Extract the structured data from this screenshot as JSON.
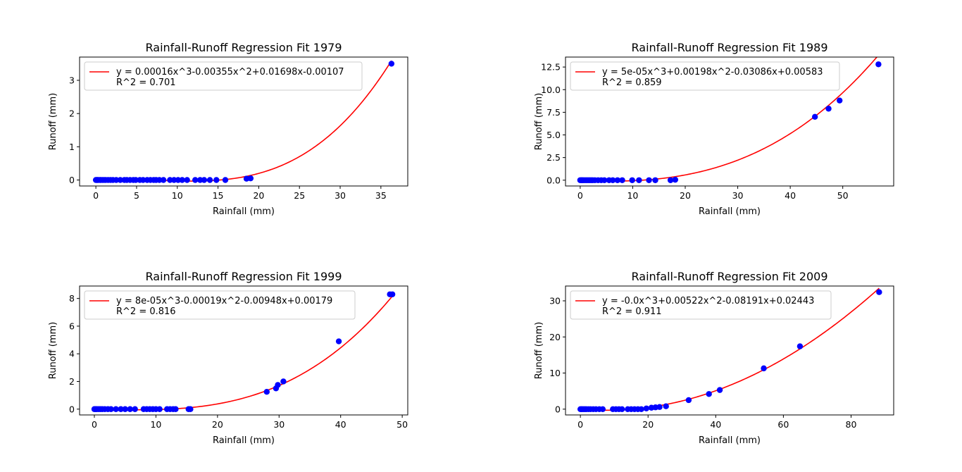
{
  "chart_data": [
    {
      "type": "scatter",
      "title": "Rainfall-Runoff Regression Fit 1979",
      "xlabel": "Rainfall (mm)",
      "ylabel": "Runoff (mm)",
      "xlim": [
        -2,
        38.3
      ],
      "ylim": [
        -0.18,
        3.7
      ],
      "xticks": [
        0,
        5,
        10,
        15,
        20,
        25,
        30,
        35
      ],
      "xtick_labels": [
        "0",
        "5",
        "10",
        "15",
        "20",
        "25",
        "30",
        "35"
      ],
      "yticks": [
        0,
        1,
        2,
        3
      ],
      "ytick_labels": [
        "0",
        "1",
        "2",
        "3"
      ],
      "grid": false,
      "legend_position": "top-left",
      "fit": {
        "label": "y = 0.00016x^3-0.00355x^2+0.01698x-0.00107",
        "r2_label": "R^2 = 0.701",
        "coefficients": [
          0.00016,
          -0.00355,
          0.01698,
          -0.00107
        ],
        "color": "#ff0000"
      },
      "points_color": "#0000ff",
      "points": {
        "x": [
          0,
          0.1,
          0.2,
          0.3,
          0.5,
          0.6,
          0.8,
          1,
          1.2,
          1.5,
          1.8,
          2.1,
          2.5,
          3,
          3.5,
          3.8,
          4.2,
          4.6,
          4.9,
          5.4,
          5.8,
          6.3,
          6.7,
          7.1,
          7.4,
          7.8,
          8.3,
          9.1,
          9.6,
          10.1,
          10.6,
          11.2,
          12.2,
          12.8,
          13.3,
          14,
          14.8,
          15.9,
          18.5,
          19
        ],
        "y": [
          0,
          0,
          0,
          0,
          0,
          0,
          0,
          0,
          0,
          0,
          0,
          0,
          0,
          0,
          0,
          0,
          0,
          0,
          0,
          0,
          0,
          0,
          0,
          0,
          0,
          0,
          0,
          0,
          0,
          0,
          0,
          0,
          0,
          0,
          0,
          0,
          0,
          0,
          0.04,
          0.05
        ]
      },
      "extra_point": {
        "x": 36.3,
        "y": 3.5
      }
    },
    {
      "type": "scatter",
      "title": "Rainfall-Runoff Regression Fit 1989",
      "xlabel": "Rainfall (mm)",
      "ylabel": "Runoff (mm)",
      "xlim": [
        -2.8,
        59.7
      ],
      "ylim": [
        -0.64,
        13.6
      ],
      "xticks": [
        0,
        10,
        20,
        30,
        40,
        50
      ],
      "xtick_labels": [
        "0",
        "10",
        "20",
        "30",
        "40",
        "50"
      ],
      "yticks": [
        0,
        2.5,
        5,
        7.5,
        10,
        12.5
      ],
      "ytick_labels": [
        "0.0",
        "2.5",
        "5.0",
        "7.5",
        "10.0",
        "12.5"
      ],
      "grid": false,
      "legend_position": "top-left",
      "fit": {
        "label": "y = 5e-05x^3+0.00198x^2-0.03086x+0.00583",
        "r2_label": "R^2 = 0.859",
        "coefficients": [
          5e-05,
          0.00198,
          -0.03086,
          0.00583
        ],
        "color": "#ff0000"
      },
      "points_color": "#0000ff",
      "points": {
        "x": [
          0,
          0.2,
          0.4,
          0.6,
          0.9,
          1.2,
          1.5,
          1.8,
          2.1,
          2.4,
          2.8,
          3.4,
          4,
          4.6,
          5.5,
          6.2,
          7.1,
          8,
          9.9,
          11.2,
          13.1,
          14.3,
          17.2,
          18.1,
          44.7,
          47.3,
          49.4,
          56.8
        ],
        "y": [
          0,
          0,
          0,
          0,
          0,
          0,
          0,
          0,
          0,
          0,
          0,
          0,
          0,
          0,
          0,
          0,
          0,
          0,
          0,
          0,
          0,
          0,
          0,
          0.05,
          7,
          7.9,
          8.8,
          12.8
        ]
      }
    },
    {
      "type": "scatter",
      "title": "Rainfall-Runoff Regression Fit 1999",
      "xlabel": "Rainfall (mm)",
      "ylabel": "Runoff (mm)",
      "xlim": [
        -2.4,
        50.9
      ],
      "ylim": [
        -0.42,
        8.9
      ],
      "xticks": [
        0,
        10,
        20,
        30,
        40,
        50
      ],
      "xtick_labels": [
        "0",
        "10",
        "20",
        "30",
        "40",
        "50"
      ],
      "yticks": [
        0,
        2,
        4,
        6,
        8
      ],
      "ytick_labels": [
        "0",
        "2",
        "4",
        "6",
        "8"
      ],
      "grid": false,
      "legend_position": "top-left",
      "fit": {
        "label": "y = 8e-05x^3-0.00019x^2-0.00948x+0.00179",
        "r2_label": "R^2 = 0.816",
        "coefficients": [
          8e-05,
          -0.00019,
          -0.00948,
          0.00179
        ],
        "color": "#ff0000"
      },
      "points_color": "#0000ff",
      "points": {
        "x": [
          0,
          0.2,
          0.4,
          0.7,
          1,
          1.3,
          1.7,
          2.2,
          2.7,
          3.5,
          4.3,
          5,
          5.8,
          6.6,
          8,
          8.5,
          9,
          9.5,
          10,
          10.6,
          11.8,
          12.3,
          12.8,
          13.2,
          15.3,
          15.6,
          28,
          29.5,
          29.8,
          30.7,
          39.7,
          48,
          48.4
        ],
        "y": [
          0,
          0,
          0,
          0,
          0,
          0,
          0,
          0,
          0,
          0,
          0,
          0,
          0,
          0,
          0,
          0,
          0,
          0,
          0,
          0,
          0,
          0,
          0,
          0,
          0,
          0,
          1.25,
          1.5,
          1.75,
          2,
          4.9,
          8.3,
          8.3
        ]
      }
    },
    {
      "type": "scatter",
      "title": "Rainfall-Runoff Regression Fit 2009",
      "xlabel": "Rainfall (mm)",
      "ylabel": "Runoff (mm)",
      "xlim": [
        -4.4,
        92.6
      ],
      "ylim": [
        -1.6,
        34.1
      ],
      "xticks": [
        0,
        20,
        40,
        60,
        80
      ],
      "xtick_labels": [
        "0",
        "20",
        "40",
        "60",
        "80"
      ],
      "yticks": [
        0,
        10,
        20,
        30
      ],
      "ytick_labels": [
        "0",
        "10",
        "20",
        "30"
      ],
      "grid": false,
      "legend_position": "top-left",
      "fit": {
        "label": "y = -0.0x^3+0.00522x^2-0.08191x+0.02443",
        "r2_label": "R^2 = 0.911",
        "coefficients": [
          0,
          0.00522,
          -0.08191,
          0.02443
        ],
        "color": "#ff0000"
      },
      "points_color": "#0000ff",
      "points": {
        "x": [
          0,
          0.3,
          0.6,
          1,
          1.4,
          1.8,
          2.4,
          3,
          3.8,
          4.6,
          5.6,
          6.6,
          9.6,
          10.5,
          11.4,
          12.3,
          14,
          15,
          16,
          17,
          18,
          19.5,
          21,
          22.2,
          23.4,
          25.3,
          32,
          38,
          41.2,
          54.2,
          64.9,
          88.3
        ],
        "y": [
          0,
          0,
          0,
          0,
          0,
          0,
          0,
          0,
          0,
          0,
          0,
          0,
          0,
          0,
          0,
          0,
          0,
          0,
          0,
          0,
          0,
          0.2,
          0.4,
          0.5,
          0.6,
          0.8,
          2.5,
          4.2,
          5.3,
          11.3,
          17.4,
          32.4
        ]
      }
    }
  ]
}
